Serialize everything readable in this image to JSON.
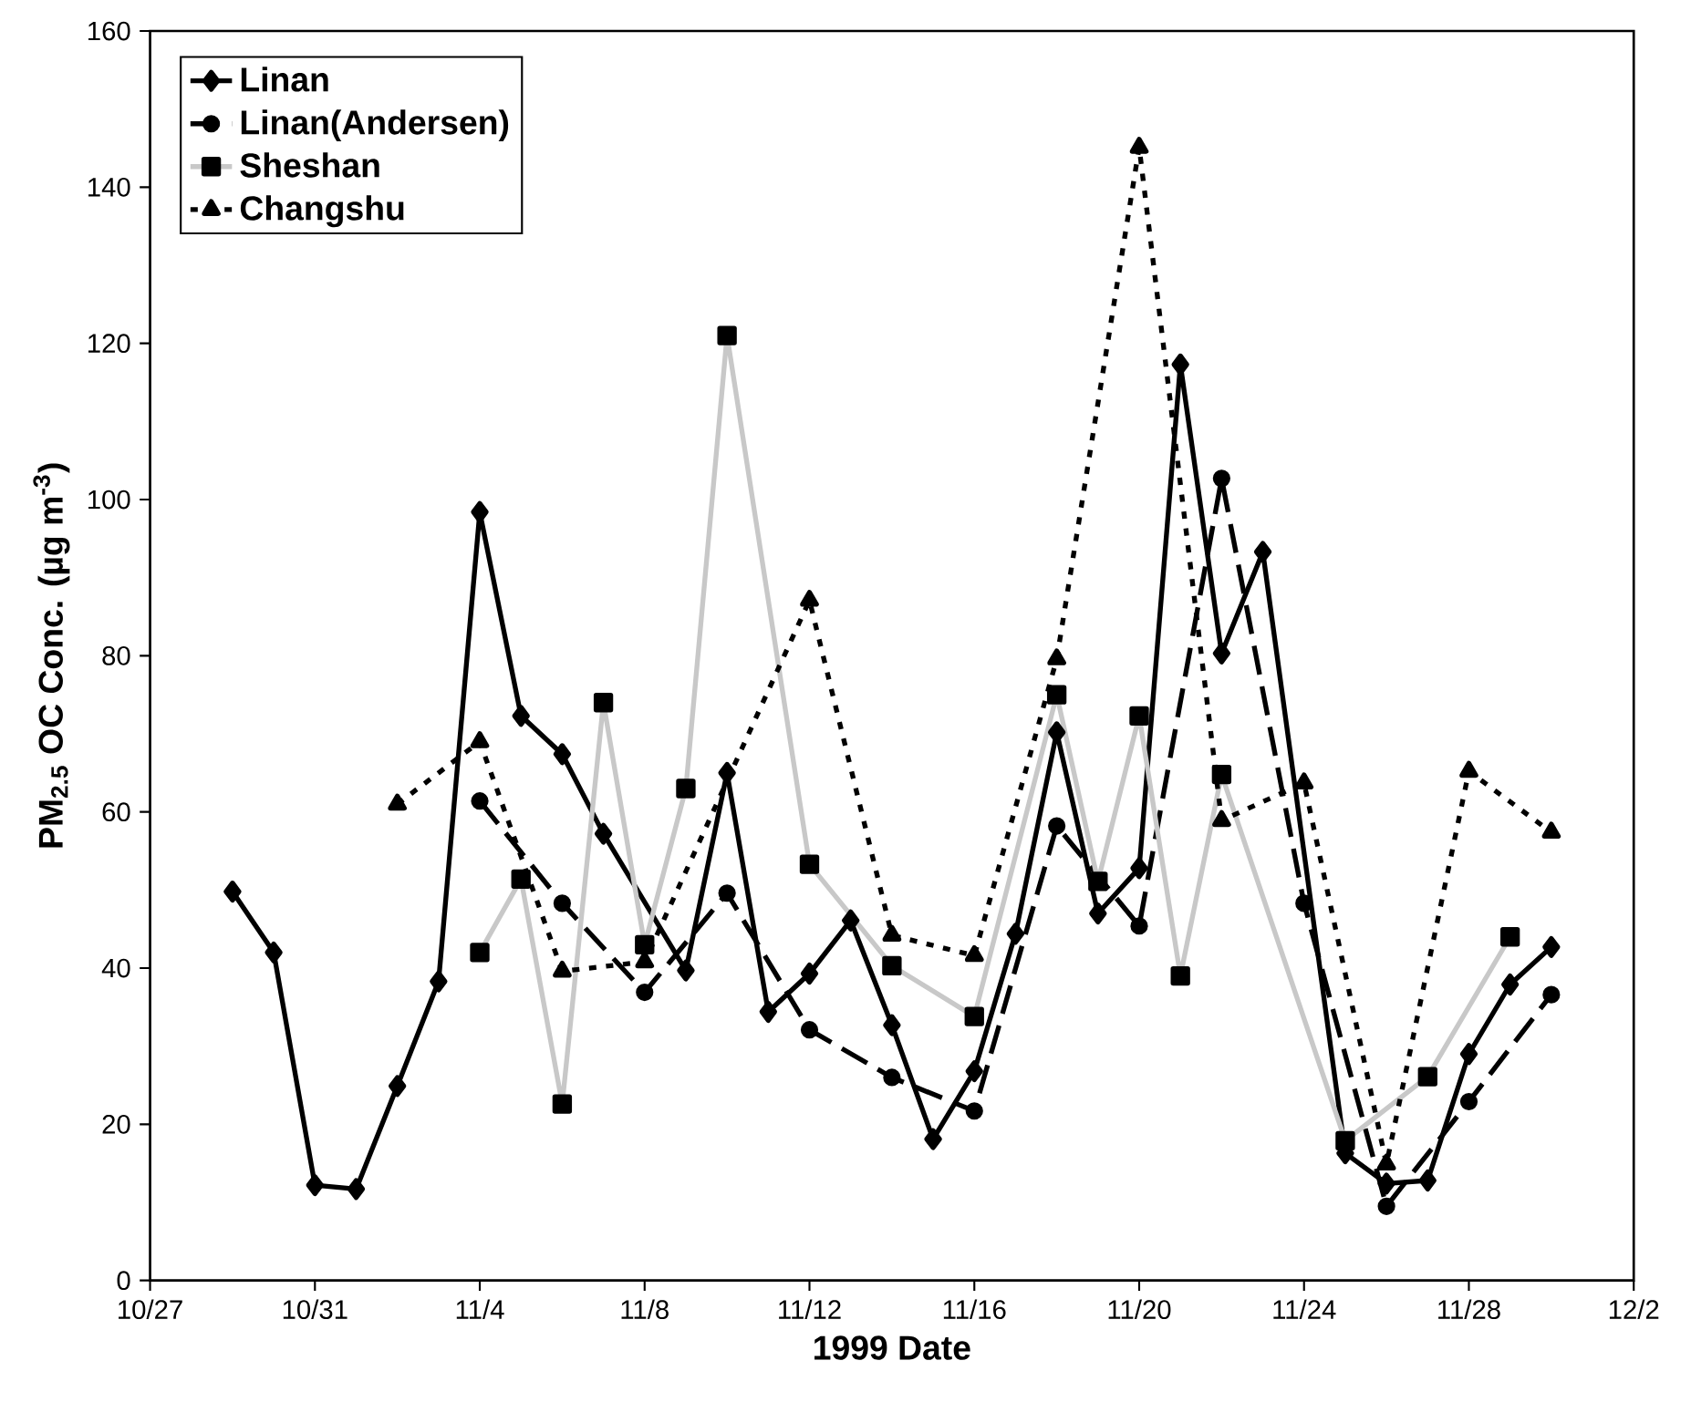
{
  "chart_data": {
    "type": "line",
    "xlabel": "1999 Date",
    "ylabel": "PM$_{2.5}$ OC Conc. (µg m$^{-3}$)",
    "xlim": [
      "1999-10-27",
      "1999-12-02"
    ],
    "xticks": [
      {
        "value": "1999-10-27",
        "label": "10/27"
      },
      {
        "value": "1999-10-31",
        "label": "10/31"
      },
      {
        "value": "1999-11-04",
        "label": "11/4"
      },
      {
        "value": "1999-11-08",
        "label": "11/8"
      },
      {
        "value": "1999-11-12",
        "label": "11/12"
      },
      {
        "value": "1999-11-16",
        "label": "11/16"
      },
      {
        "value": "1999-11-20",
        "label": "11/20"
      },
      {
        "value": "1999-11-24",
        "label": "11/24"
      },
      {
        "value": "1999-11-28",
        "label": "11/28"
      },
      {
        "value": "1999-12-02",
        "label": "12/2"
      }
    ],
    "ylim": [
      0,
      160
    ],
    "yticks": [
      0,
      20,
      40,
      60,
      80,
      100,
      120,
      140,
      160
    ],
    "grid": false,
    "legend": "top left",
    "series": [
      {
        "name": "Linan",
        "color": "#000000",
        "marker": "diamond",
        "line_style": "solid",
        "x": [
          "1999-10-29",
          "1999-10-30",
          "1999-10-31",
          "1999-11-01",
          "1999-11-02",
          "1999-11-03",
          "1999-11-04",
          "1999-11-05",
          "1999-11-06",
          "1999-11-07",
          "1999-11-09",
          "1999-11-10",
          "1999-11-11",
          "1999-11-12",
          "1999-11-13",
          "1999-11-14",
          "1999-11-15",
          "1999-11-16",
          "1999-11-17",
          "1999-11-18",
          "1999-11-19",
          "1999-11-20",
          "1999-11-21",
          "1999-11-22",
          "1999-11-23",
          "1999-11-25",
          "1999-11-26",
          "1999-11-27",
          "1999-11-28",
          "1999-11-29",
          "1999-11-30"
        ],
        "values": [
          49.8,
          42,
          12.2,
          11.7,
          24.9,
          38.3,
          98.4,
          72.3,
          67.4,
          57.2,
          39.7,
          65,
          34.4,
          39.3,
          46.1,
          32.7,
          18.1,
          26.8,
          44.4,
          70.2,
          47,
          52.8,
          117.3,
          80.3,
          93.3,
          16.3,
          12.4,
          12.8,
          29,
          37.9,
          42.7
        ]
      },
      {
        "name": "Linan(Andersen)",
        "color": "#000000",
        "marker": "circle",
        "line_style": "dashed",
        "x": [
          "1999-11-04",
          "1999-11-06",
          "1999-11-08",
          "1999-11-10",
          "1999-11-12",
          "1999-11-14",
          "1999-11-16",
          "1999-11-18",
          "1999-11-20",
          "1999-11-22",
          "1999-11-24",
          "1999-11-26",
          "1999-11-28",
          "1999-11-30"
        ],
        "values": [
          61.4,
          48.3,
          36.9,
          49.6,
          32.1,
          26,
          21.7,
          58.2,
          45.4,
          102.7,
          48.3,
          9.5,
          22.9,
          36.6
        ]
      },
      {
        "name": "Sheshan",
        "color": "#c8c8c8",
        "marker": "square",
        "line_style": "solid",
        "x": [
          "1999-11-04",
          "1999-11-05",
          "1999-11-06",
          "1999-11-07",
          "1999-11-08",
          "1999-11-09",
          "1999-11-10",
          "1999-11-12",
          "1999-11-14",
          "1999-11-16",
          "1999-11-18",
          "1999-11-19",
          "1999-11-20",
          "1999-11-21",
          "1999-11-22",
          "1999-11-25",
          "1999-11-27",
          "1999-11-29"
        ],
        "values": [
          42,
          51.4,
          22.6,
          74,
          43,
          63,
          121,
          53.3,
          40.3,
          33.8,
          75,
          51.1,
          72.3,
          39,
          64.8,
          17.9,
          26.1,
          44
        ]
      },
      {
        "name": "Changshu",
        "color": "#000000",
        "marker": "triangle",
        "line_style": "dotted",
        "x": [
          "1999-11-02",
          "1999-11-04",
          "1999-11-06",
          "1999-11-08",
          "1999-11-12",
          "1999-11-14",
          "1999-11-16",
          "1999-11-18",
          "1999-11-20",
          "1999-11-22",
          "1999-11-24",
          "1999-11-26",
          "1999-11-28",
          "1999-11-30"
        ],
        "values": [
          61,
          69,
          39.6,
          40.8,
          87.1,
          44.2,
          41.6,
          79.6,
          145.1,
          58.9,
          63.7,
          14.9,
          65.2,
          57.4
        ]
      }
    ]
  }
}
